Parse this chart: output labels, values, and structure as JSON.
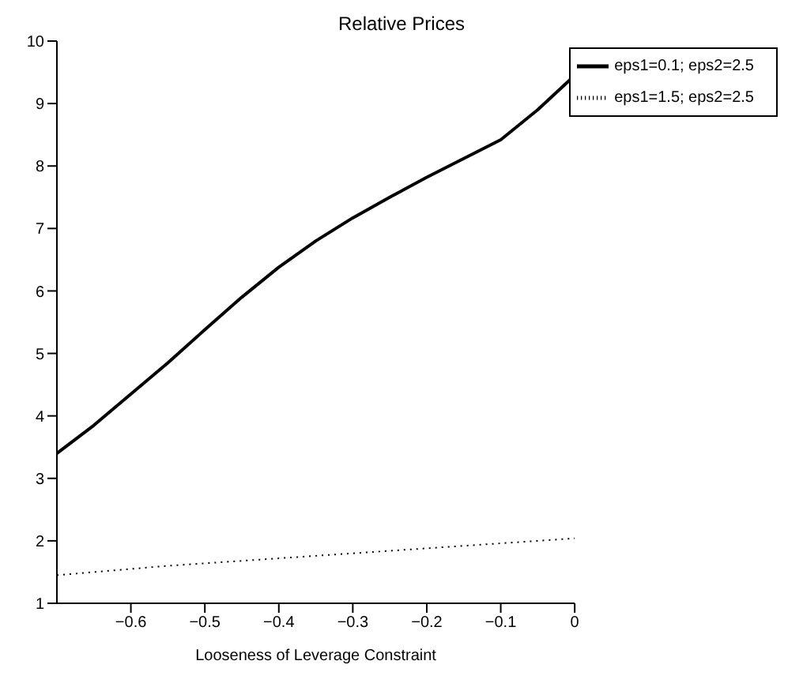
{
  "chart_data": {
    "type": "line",
    "title": "Relative Prices",
    "xlabel": "Looseness of Leverage Constraint",
    "x": [
      -0.7,
      -0.65,
      -0.6,
      -0.55,
      -0.5,
      -0.45,
      -0.4,
      -0.35,
      -0.3,
      -0.25,
      -0.2,
      -0.15,
      -0.1,
      -0.05,
      0
    ],
    "series": [
      {
        "name": "eps1=0.1; eps2=2.5",
        "color": "#000000",
        "line_style": "solid",
        "values": [
          3.4,
          3.85,
          4.35,
          4.85,
          5.38,
          5.9,
          6.38,
          6.8,
          7.17,
          7.5,
          7.82,
          8.12,
          8.42,
          8.9,
          9.45
        ]
      },
      {
        "name": "eps1=1.5; eps2=2.5",
        "color": "#000000",
        "line_style": "dotted",
        "values": [
          1.45,
          1.5,
          1.55,
          1.6,
          1.64,
          1.68,
          1.72,
          1.76,
          1.8,
          1.84,
          1.88,
          1.92,
          1.96,
          2.0,
          2.04
        ]
      }
    ],
    "xlim": [
      -0.7,
      0
    ],
    "xticks": [
      -0.6,
      -0.5,
      -0.4,
      -0.3,
      -0.2,
      -0.1,
      0
    ],
    "ylim": [
      1,
      10
    ],
    "yticks": [
      1,
      2,
      3,
      4,
      5,
      6,
      7,
      8,
      9,
      10
    ],
    "grid": false,
    "legend": "top right",
    "marker": "none"
  }
}
